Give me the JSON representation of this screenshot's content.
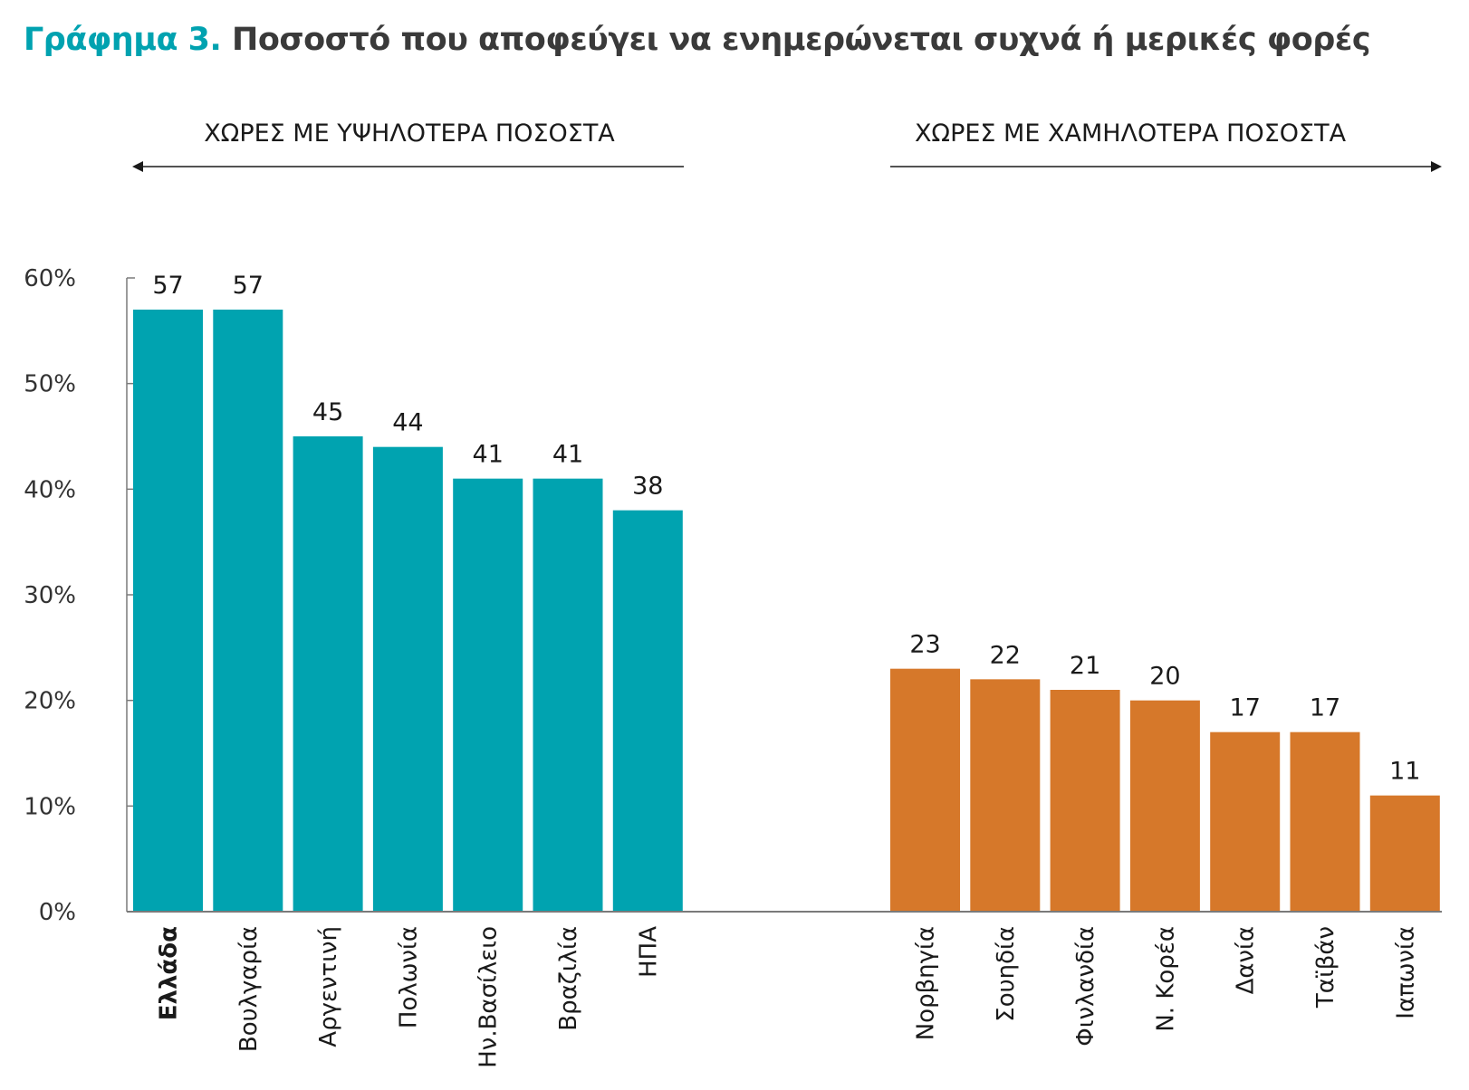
{
  "title": {
    "prefix": "Γράφημα 3.",
    "text": "Ποσοστό που αποφεύγει να ενημερώνεται συχνά ή μερικές φορές"
  },
  "groups": {
    "high": {
      "label": "ΧΩΡΕΣ ΜΕ ΥΨΗΛΟΤΕΡΑ ΠΟΣΟΣΤΑ",
      "color": "#00a3b0",
      "arrow": "left"
    },
    "low": {
      "label": "ΧΩΡΕΣ ΜΕ ΧΑΜΗΛΟΤΕΡΑ ΠΟΣΟΣΤΑ",
      "color": "#d6782a",
      "arrow": "right"
    }
  },
  "chart_data": {
    "type": "bar",
    "ylim": [
      0,
      60
    ],
    "yticks": [
      "0%",
      "10%",
      "20%",
      "30%",
      "40%",
      "50%",
      "60%"
    ],
    "grid": false,
    "bars": [
      {
        "category": "Ελλάδα",
        "value": 57,
        "group": "high",
        "bold": true
      },
      {
        "category": "Βουλγαρία",
        "value": 57,
        "group": "high"
      },
      {
        "category": "Αργεντινή",
        "value": 45,
        "group": "high"
      },
      {
        "category": "Πολωνία",
        "value": 44,
        "group": "high"
      },
      {
        "category": "Ην.Βασίλειο",
        "value": 41,
        "group": "high"
      },
      {
        "category": "Βραζιλία",
        "value": 41,
        "group": "high"
      },
      {
        "category": "ΗΠΑ",
        "value": 38,
        "group": "high"
      },
      {
        "category": "Νορβηγία",
        "value": 23,
        "group": "low"
      },
      {
        "category": "Σουηδία",
        "value": 22,
        "group": "low"
      },
      {
        "category": "Φινλανδία",
        "value": 21,
        "group": "low"
      },
      {
        "category": "Ν. Κορέα",
        "value": 20,
        "group": "low"
      },
      {
        "category": "Δανία",
        "value": 17,
        "group": "low"
      },
      {
        "category": "Ταϊβάν",
        "value": 17,
        "group": "low"
      },
      {
        "category": "Ιαπωνία",
        "value": 11,
        "group": "low"
      }
    ]
  }
}
